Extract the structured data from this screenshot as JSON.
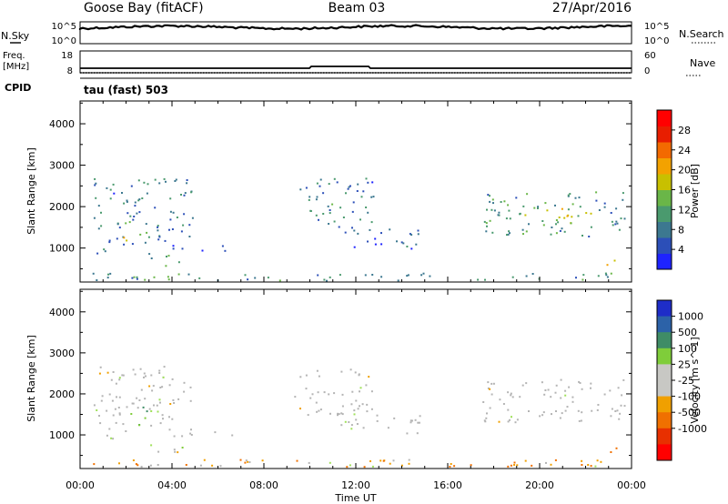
{
  "header": {
    "station": "Goose Bay (fitACF)",
    "beam": "Beam 03",
    "date": "27/Apr/2016"
  },
  "noise_panel": {
    "left_label": "N.Sky",
    "left_ticks": [
      "10^5",
      "10^0"
    ],
    "right_label": "N.Search",
    "right_ticks": [
      "10^5",
      "10^0"
    ]
  },
  "freq_panel": {
    "left_label_1": "Freq.",
    "left_label_2": "[MHz]",
    "left_ticks": [
      "18",
      "8"
    ],
    "right_label": "Nave",
    "right_ticks": [
      "60",
      "0"
    ]
  },
  "cpid": {
    "label": "CPID",
    "mode": "tau (fast) 503"
  },
  "colors": {
    "power_scale": [
      "#1e23ff",
      "#2c4fb8",
      "#3c7890",
      "#4a9a6e",
      "#6ab648",
      "#c8c000",
      "#f3a200",
      "#f36a00",
      "#e81e00",
      "#ff0000"
    ],
    "velocity_scale": [
      "#1e2dc8",
      "#2c62a8",
      "#3f8c66",
      "#7fcd3a",
      "#c8c8c4",
      "#c8c8c4",
      "#f0a000",
      "#f07000",
      "#e83000",
      "#ff0000"
    ],
    "ground_scatter": "#b4b4b4"
  },
  "chart_data": [
    {
      "type": "heatmap",
      "title": "",
      "xlabel": "Time UT",
      "ylabel": "Slant Range [km]",
      "x_ticks": [
        "00:00",
        "04:00",
        "08:00",
        "12:00",
        "16:00",
        "20:00",
        "00:00"
      ],
      "y_ticks": [
        "1000",
        "2000",
        "3000",
        "4000"
      ],
      "xlim_hours": [
        0,
        24
      ],
      "ylim_km": [
        180,
        4550
      ],
      "colorbar_label": "Power [dB]",
      "colorbar_ticks": [
        "4",
        "8",
        "12",
        "16",
        "20",
        "24",
        "28"
      ],
      "colorbar_range": [
        0,
        32
      ],
      "regions": [
        {
          "t": [
            0.4,
            4.9
          ],
          "r": [
            1100,
            2700
          ],
          "level": 8
        },
        {
          "t": [
            1.8,
            2.9
          ],
          "r": [
            1200,
            1700
          ],
          "level": 16
        },
        {
          "t": [
            0.2,
            1.4
          ],
          "r": [
            850,
            1050
          ],
          "level": 6
        },
        {
          "t": [
            2.9,
            4.7
          ],
          "r": [
            580,
            900
          ],
          "level": 10
        },
        {
          "t": [
            4.0,
            7.8
          ],
          "r": [
            950,
            1100
          ],
          "level": 6
        },
        {
          "t": [
            9.3,
            12.8
          ],
          "r": [
            1500,
            2700
          ],
          "level": 8
        },
        {
          "t": [
            11.0,
            14.8
          ],
          "r": [
            1000,
            1500
          ],
          "level": 6
        },
        {
          "t": [
            17.5,
            23.8
          ],
          "r": [
            1300,
            2400
          ],
          "level": 10
        },
        {
          "t": [
            19.0,
            22.5
          ],
          "r": [
            1600,
            2000
          ],
          "level": 17
        },
        {
          "t": [
            22.4,
            23.5
          ],
          "r": [
            600,
            800
          ],
          "level": 18
        },
        {
          "t": [
            0.5,
            23.8
          ],
          "r": [
            190,
            420
          ],
          "level": 9
        }
      ]
    },
    {
      "type": "heatmap",
      "title": "",
      "xlabel": "Time UT",
      "ylabel": "Slant Range [km]",
      "x_ticks": [
        "00:00",
        "04:00",
        "08:00",
        "12:00",
        "16:00",
        "20:00",
        "00:00"
      ],
      "y_ticks": [
        "1000",
        "2000",
        "3000",
        "4000"
      ],
      "xlim_hours": [
        0,
        24
      ],
      "ylim_km": [
        180,
        4550
      ],
      "colorbar_label": "Velocity [m s^-1]",
      "colorbar_ticks": [
        "1000",
        "500",
        "100",
        "25",
        "-25",
        "-100",
        "-500",
        "-1000"
      ],
      "regions": [
        {
          "t": [
            0.4,
            4.9
          ],
          "r": [
            1100,
            2700
          ],
          "vel": 0
        },
        {
          "t": [
            1.8,
            2.9
          ],
          "r": [
            1200,
            1700
          ],
          "vel": 300
        },
        {
          "t": [
            0.2,
            1.4
          ],
          "r": [
            850,
            1050
          ],
          "vel": 0
        },
        {
          "t": [
            2.9,
            4.7
          ],
          "r": [
            580,
            900
          ],
          "vel": 50
        },
        {
          "t": [
            4.0,
            7.8
          ],
          "r": [
            950,
            1100
          ],
          "vel": 0
        },
        {
          "t": [
            9.3,
            12.8
          ],
          "r": [
            1500,
            2700
          ],
          "vel": 0
        },
        {
          "t": [
            11.0,
            14.8
          ],
          "r": [
            1000,
            1500
          ],
          "vel": 0
        },
        {
          "t": [
            17.5,
            23.8
          ],
          "r": [
            1300,
            2400
          ],
          "vel": 0
        },
        {
          "t": [
            22.4,
            23.5
          ],
          "r": [
            600,
            800
          ],
          "vel": -120
        },
        {
          "t": [
            0.5,
            23.8
          ],
          "r": [
            190,
            420
          ],
          "vel": -60
        }
      ]
    }
  ]
}
